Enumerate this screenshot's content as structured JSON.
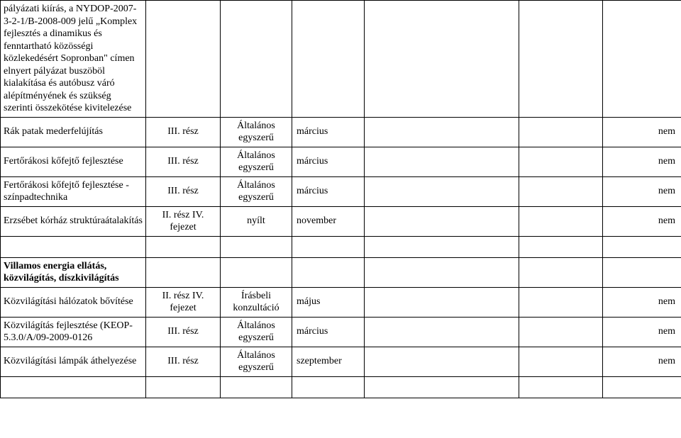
{
  "rows": [
    {
      "c1": "pályázati kiírás, a NYDOP-2007-3-2-1/B-2008-009 jelű „Komplex fejlesztés a dinamikus és fenntartható közösségi közlekedésért Sopronban\" címen elnyert pályázat buszöböl kialakítása és autóbusz váró alépítményének és szükség szerinti összekötése kivitelezése"
    },
    {
      "c1": "Rák patak mederfelújítás",
      "c2": "III. rész",
      "c3": "Általános egyszerű",
      "c4": "március",
      "c7": "nem"
    },
    {
      "c1": "Fertőrákosi kőfejtő fejlesztése",
      "c2": "III. rész",
      "c3": "Általános egyszerű",
      "c4": "március",
      "c7": "nem"
    },
    {
      "c1": "Fertőrákosi kőfejtő fejlesztése - színpadtechnika",
      "c2": "III. rész",
      "c3": "Általános egyszerű",
      "c4": "március",
      "c7": "nem"
    },
    {
      "c1": "Erzsébet kórház struktúraátalakítás",
      "c2": "II. rész IV. fejezet",
      "c3": "nyílt",
      "c4": "november",
      "c7": "nem"
    }
  ],
  "section_title": "Villamos energia ellátás, közvilágítás, díszkivilágítás",
  "rows2": [
    {
      "c1": "Közvilágítási hálózatok bővítése",
      "c2": "II. rész IV. fejezet",
      "c3": "Írásbeli konzultáció",
      "c4": "május",
      "c7": "nem"
    },
    {
      "c1": "Közvilágítás fejlesztése (KEOP-5.3.0/A/09-2009-0126",
      "c2": "III. rész",
      "c3": "Általános egyszerű",
      "c4": "március",
      "c7": "nem"
    },
    {
      "c1": "Közvilágítási lámpák áthelyezése",
      "c2": "III. rész",
      "c3": "Általános egyszerű",
      "c4": "szeptember",
      "c7": "nem"
    }
  ]
}
